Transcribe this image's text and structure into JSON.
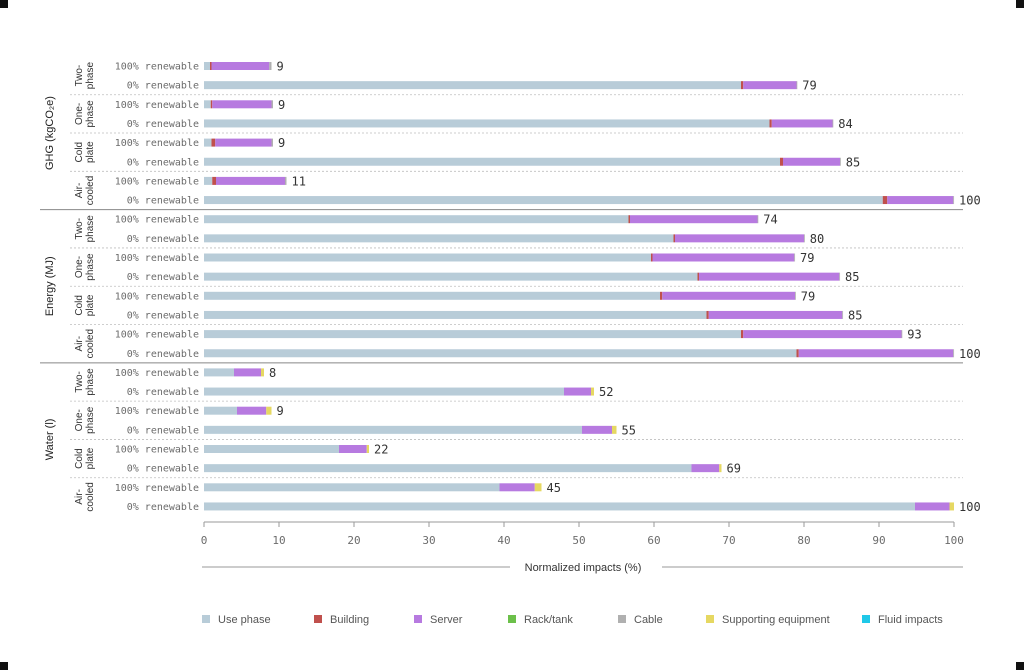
{
  "chart_data": {
    "type": "bar",
    "stacked": true,
    "orientation": "horizontal",
    "xlabel": "Normalized impacts (%)",
    "xlim": [
      0,
      100
    ],
    "xticks": [
      0,
      10,
      20,
      30,
      40,
      50,
      60,
      70,
      80,
      90,
      100
    ],
    "legend_position": "bottom",
    "series": [
      {
        "name": "Use phase",
        "color": "#b8ccd8"
      },
      {
        "name": "Building",
        "color": "#c0504d"
      },
      {
        "name": "Server",
        "color": "#b77ae0"
      },
      {
        "name": "Rack/tank",
        "color": "#6cc04a"
      },
      {
        "name": "Cable",
        "color": "#b0b0b0"
      },
      {
        "name": "Supporting equipment",
        "color": "#e6d862"
      },
      {
        "name": "Fluid impacts",
        "color": "#1fc8e8"
      }
    ],
    "groups": [
      {
        "label": "GHG (kgCO₂e)",
        "subgroups": [
          {
            "label": [
              "Two-",
              "phase"
            ],
            "rows": [
              {
                "label": "100% renewable",
                "total": "9",
                "segments": [
                  0.8,
                  0.2,
                  7.7,
                  0,
                  0.3,
                  0,
                  0
                ]
              },
              {
                "label": "0% renewable",
                "total": "79",
                "segments": [
                  71.6,
                  0.3,
                  7.1,
                  0,
                  0.1,
                  0,
                  0
                ]
              }
            ]
          },
          {
            "label": [
              "One-",
              "phase"
            ],
            "rows": [
              {
                "label": "100% renewable",
                "total": "9",
                "segments": [
                  0.9,
                  0.2,
                  7.9,
                  0,
                  0.2,
                  0,
                  0
                ]
              },
              {
                "label": "0% renewable",
                "total": "84",
                "segments": [
                  75.4,
                  0.3,
                  8.1,
                  0,
                  0.1,
                  0,
                  0
                ]
              }
            ]
          },
          {
            "label": [
              "Cold",
              "plate"
            ],
            "rows": [
              {
                "label": "100% renewable",
                "total": "9",
                "segments": [
                  1.0,
                  0.5,
                  7.5,
                  0,
                  0.2,
                  0,
                  0
                ]
              },
              {
                "label": "0% renewable",
                "total": "85",
                "segments": [
                  76.8,
                  0.4,
                  7.6,
                  0,
                  0.1,
                  0,
                  0
                ]
              }
            ]
          },
          {
            "label": [
              "Air-",
              "cooled"
            ],
            "rows": [
              {
                "label": "100% renewable",
                "total": "11",
                "segments": [
                  1.1,
                  0.5,
                  9.2,
                  0,
                  0.2,
                  0,
                  0
                ]
              },
              {
                "label": "0% renewable",
                "total": "100",
                "segments": [
                  90.5,
                  0.6,
                  8.8,
                  0,
                  0.1,
                  0,
                  0
                ]
              }
            ]
          }
        ]
      },
      {
        "label": "Energy (MJ)",
        "subgroups": [
          {
            "label": [
              "Two-",
              "phase"
            ],
            "rows": [
              {
                "label": "100% renewable",
                "total": "74",
                "segments": [
                  56.6,
                  0.2,
                  17.0,
                  0,
                  0.1,
                  0,
                  0
                ]
              },
              {
                "label": "0% renewable",
                "total": "80",
                "segments": [
                  62.6,
                  0.2,
                  17.2,
                  0,
                  0.1,
                  0,
                  0
                ]
              }
            ]
          },
          {
            "label": [
              "One-",
              "phase"
            ],
            "rows": [
              {
                "label": "100% renewable",
                "total": "79",
                "segments": [
                  59.6,
                  0.2,
                  18.9,
                  0,
                  0.1,
                  0,
                  0
                ]
              },
              {
                "label": "0% renewable",
                "total": "85",
                "segments": [
                  65.8,
                  0.2,
                  18.7,
                  0,
                  0.1,
                  0,
                  0
                ]
              }
            ]
          },
          {
            "label": [
              "Cold",
              "plate"
            ],
            "rows": [
              {
                "label": "100% renewable",
                "total": "79",
                "segments": [
                  60.8,
                  0.3,
                  17.7,
                  0,
                  0.1,
                  0,
                  0
                ]
              },
              {
                "label": "0% renewable",
                "total": "85",
                "segments": [
                  67.0,
                  0.3,
                  17.8,
                  0,
                  0.1,
                  0,
                  0
                ]
              }
            ]
          },
          {
            "label": [
              "Air-",
              "cooled"
            ],
            "rows": [
              {
                "label": "100% renewable",
                "total": "93",
                "segments": [
                  71.6,
                  0.3,
                  21.1,
                  0,
                  0.1,
                  0,
                  0
                ]
              },
              {
                "label": "0% renewable",
                "total": "100",
                "segments": [
                  79.0,
                  0.3,
                  20.6,
                  0,
                  0.1,
                  0,
                  0
                ]
              }
            ]
          }
        ]
      },
      {
        "label": "Water (l)",
        "subgroups": [
          {
            "label": [
              "Two-",
              "phase"
            ],
            "rows": [
              {
                "label": "100% renewable",
                "total": "8",
                "segments": [
                  4.0,
                  0,
                  3.6,
                  0,
                  0,
                  0.4,
                  0
                ]
              },
              {
                "label": "0% renewable",
                "total": "52",
                "segments": [
                  48.0,
                  0,
                  3.6,
                  0,
                  0,
                  0.4,
                  0
                ]
              }
            ]
          },
          {
            "label": [
              "One-",
              "phase"
            ],
            "rows": [
              {
                "label": "100% renewable",
                "total": "9",
                "segments": [
                  4.4,
                  0,
                  3.9,
                  0,
                  0,
                  0.7,
                  0
                ]
              },
              {
                "label": "0% renewable",
                "total": "55",
                "segments": [
                  50.4,
                  0,
                  4.0,
                  0,
                  0,
                  0.6,
                  0
                ]
              }
            ]
          },
          {
            "label": [
              "Cold",
              "plate"
            ],
            "rows": [
              {
                "label": "100% renewable",
                "total": "22",
                "segments": [
                  18.0,
                  0,
                  3.7,
                  0,
                  0,
                  0.3,
                  0
                ]
              },
              {
                "label": "0% renewable",
                "total": "69",
                "segments": [
                  65.0,
                  0,
                  3.7,
                  0,
                  0,
                  0.3,
                  0
                ]
              }
            ]
          },
          {
            "label": [
              "Air-",
              "cooled"
            ],
            "rows": [
              {
                "label": "100% renewable",
                "total": "45",
                "segments": [
                  39.4,
                  0,
                  4.7,
                  0,
                  0,
                  0.9,
                  0
                ]
              },
              {
                "label": "0% renewable",
                "total": "100",
                "segments": [
                  94.8,
                  0,
                  4.6,
                  0,
                  0,
                  0.6,
                  0
                ]
              }
            ]
          }
        ]
      }
    ]
  }
}
